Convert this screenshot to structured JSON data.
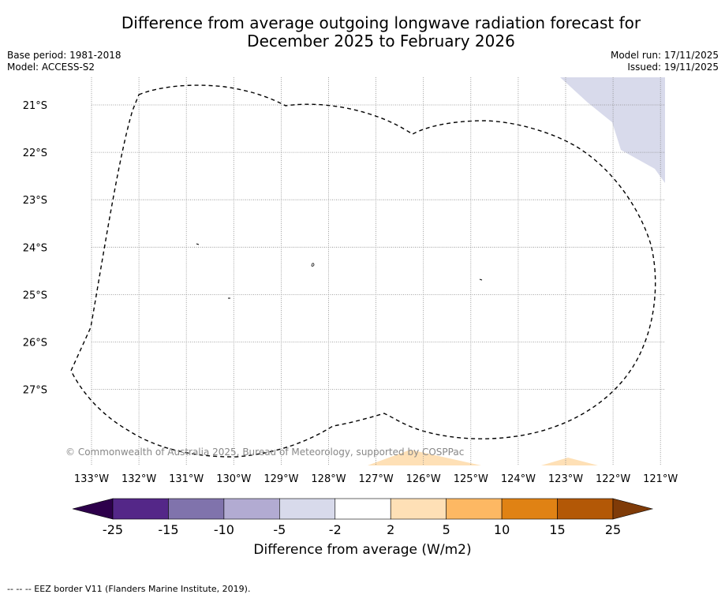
{
  "title_line1": "Difference from average outgoing longwave radiation forecast for",
  "title_line2": "December 2025 to February 2026",
  "base_period": "Base period: 1981-2018",
  "model": "Model: ACCESS-S2",
  "model_run": "Model run: 17/11/2025",
  "issued": "Issued: 19/11/2025",
  "copyright": "© Commonwealth of Australia 2025, Bureau of Meteorology, supported by COSPPac",
  "footer": "--  --  -- EEZ border V11 (Flanders Marine Institute, 2019).",
  "lat_labels": [
    "21°S",
    "22°S",
    "23°S",
    "24°S",
    "25°S",
    "26°S",
    "27°S"
  ],
  "lon_labels": [
    "133°W",
    "132°W",
    "131°W",
    "130°W",
    "129°W",
    "128°W",
    "127°W",
    "126°W",
    "125°W",
    "124°W",
    "123°W",
    "122°W",
    "121°W"
  ],
  "colorbar": {
    "label": "Difference from average (W/m2)",
    "ticks": [
      "-25",
      "-15",
      "-10",
      "-5",
      "-2",
      "2",
      "5",
      "10",
      "15",
      "25"
    ],
    "colors": {
      "under": "#2d004b",
      "bins": [
        "#542788",
        "#8073ac",
        "#b2abd2",
        "#d8daeb",
        "#ffffff",
        "#fee0b6",
        "#fdb863",
        "#e08214",
        "#b35806"
      ],
      "over": "#7f3b08"
    }
  }
}
